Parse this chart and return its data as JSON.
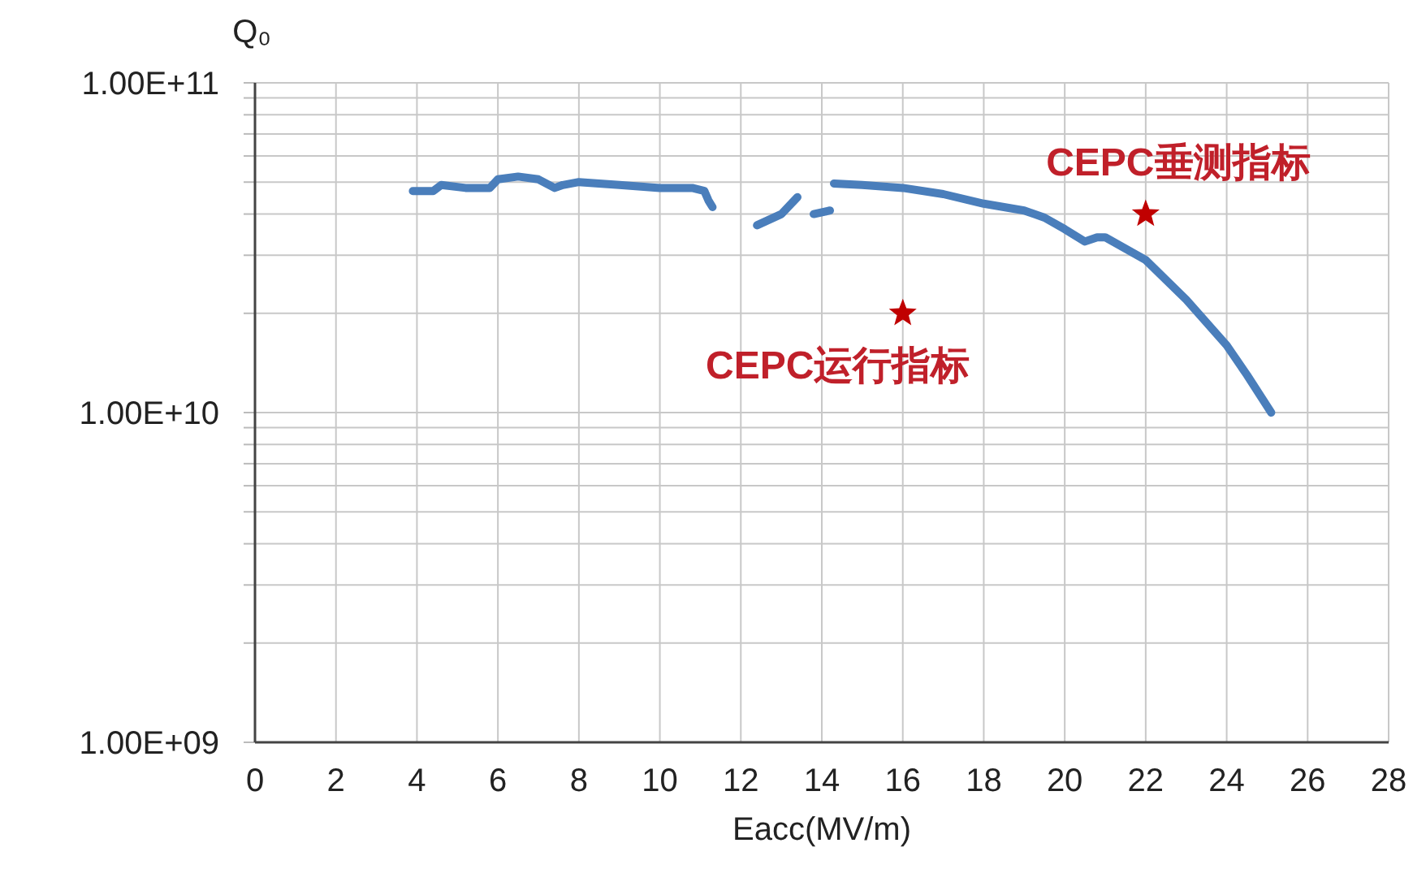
{
  "chart_data": {
    "type": "line",
    "xlabel": "Eacc(MV/m)",
    "ylabel": "Q₀",
    "log": "y",
    "grid": true,
    "xlim": [
      0,
      28
    ],
    "xticks": [
      0,
      2,
      4,
      6,
      8,
      10,
      12,
      14,
      16,
      18,
      20,
      22,
      24,
      26,
      28
    ],
    "ylim": [
      1000000000.0,
      100000000000.0
    ],
    "yticks": [
      {
        "value": 1000000000.0,
        "label": "1.00E+09"
      },
      {
        "value": 2000000000.0,
        "label": null
      },
      {
        "value": 3000000000.0,
        "label": null
      },
      {
        "value": 4000000000.0,
        "label": null
      },
      {
        "value": 5000000000.0,
        "label": null
      },
      {
        "value": 6000000000.0,
        "label": null
      },
      {
        "value": 7000000000.0,
        "label": null
      },
      {
        "value": 8000000000.0,
        "label": null
      },
      {
        "value": 9000000000.0,
        "label": null
      },
      {
        "value": 10000000000.0,
        "label": "1.00E+10"
      },
      {
        "value": 20000000000.0,
        "label": null
      },
      {
        "value": 30000000000.0,
        "label": null
      },
      {
        "value": 40000000000.0,
        "label": null
      },
      {
        "value": 50000000000.0,
        "label": null
      },
      {
        "value": 60000000000.0,
        "label": null
      },
      {
        "value": 70000000000.0,
        "label": null
      },
      {
        "value": 80000000000.0,
        "label": null
      },
      {
        "value": 90000000000.0,
        "label": null
      },
      {
        "value": 100000000000.0,
        "label": "1.00E+11"
      }
    ],
    "series": [
      {
        "color": "#4a7ebb",
        "x": [
          3.9,
          4.4,
          4.6,
          5.2,
          5.8,
          6.0,
          6.5,
          7.0,
          7.4,
          7.6,
          8.0,
          9.0,
          10.0,
          10.8,
          11.1,
          11.2,
          11.3,
          11.8,
          12.4,
          13.0,
          13.4,
          13.6,
          13.8,
          14.2,
          14.25,
          14.3,
          15.0,
          16.0,
          17.0,
          18.0,
          19.0,
          19.5,
          20.0,
          20.5,
          20.8,
          21.0,
          22.0,
          23.0,
          24.0,
          24.5,
          25.1
        ],
        "values": [
          47000000000.0,
          47000000000.0,
          49000000000.0,
          48000000000.0,
          48000000000.0,
          51000000000.0,
          52000000000.0,
          51000000000.0,
          48000000000.0,
          49000000000.0,
          50000000000.0,
          49000000000.0,
          48000000000.0,
          48000000000.0,
          47000000000.0,
          44000000000.0,
          42000000000.0,
          null,
          37000000000.0,
          40000000000.0,
          45000000000.0,
          null,
          40000000000.0,
          41000000000.0,
          null,
          49500000000.0,
          49000000000.0,
          48000000000.0,
          46000000000.0,
          43000000000.0,
          41000000000.0,
          39000000000.0,
          36000000000.0,
          33000000000.0,
          34000000000.0,
          34000000000.0,
          29000000000.0,
          22000000000.0,
          16000000000.0,
          13000000000.0,
          10000000000.0
        ]
      },
      {
        "type": "scatter",
        "marker": "star",
        "color": "#c00000",
        "x": [
          16,
          22
        ],
        "values": [
          20000000000.0,
          40000000000.0
        ]
      }
    ],
    "annotations": [
      {
        "text": "CEPC运行指标",
        "x": 16,
        "y": 20000000000.0
      },
      {
        "text": "CEPC垂测指标",
        "x": 22,
        "y": 40000000000.0
      }
    ]
  }
}
